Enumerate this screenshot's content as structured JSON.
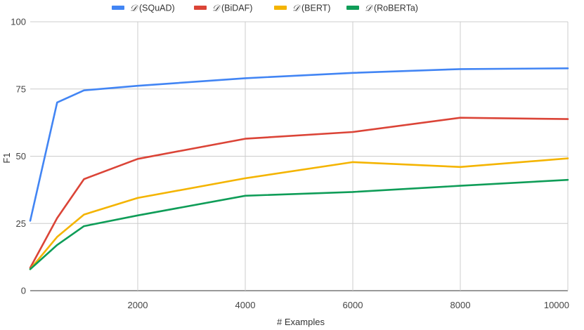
{
  "chart_data": {
    "type": "line",
    "title": "",
    "xlabel": "# Examples",
    "ylabel": "F1",
    "xlim": [
      0,
      10000
    ],
    "ylim": [
      0,
      100
    ],
    "x_ticks": [
      "2000",
      "4000",
      "6000",
      "8000",
      "10000"
    ],
    "x_tick_values": [
      2000,
      4000,
      6000,
      8000,
      10000
    ],
    "y_ticks": [
      "0",
      "25",
      "50",
      "75",
      "100"
    ],
    "y_tick_values": [
      0,
      25,
      50,
      75,
      100
    ],
    "grid": true,
    "legend_position": "top",
    "x": [
      0,
      500,
      1000,
      2000,
      4000,
      6000,
      8000,
      10000
    ],
    "series": [
      {
        "name": "𝒟 (SQuAD)",
        "symbol": "𝒟",
        "label": "(SQuAD)",
        "color": "#4285f4",
        "values": [
          26,
          70,
          74.5,
          76.2,
          79,
          81,
          82.4,
          82.7
        ]
      },
      {
        "name": "𝒟 (BiDAF)",
        "symbol": "𝒟",
        "label": "(BiDAF)",
        "color": "#db4437",
        "values": [
          8.5,
          27,
          41.5,
          49,
          56.5,
          59,
          64.3,
          63.8
        ]
      },
      {
        "name": "𝒟 (BERT)",
        "symbol": "𝒟",
        "label": "(BERT)",
        "color": "#f4b400",
        "values": [
          8,
          20,
          28.3,
          34.5,
          41.8,
          47.8,
          46,
          49.2
        ]
      },
      {
        "name": "𝒟 (RoBERTa)",
        "symbol": "𝒟",
        "label": "(RoBERTa)",
        "color": "#0f9d58",
        "values": [
          8,
          17,
          24,
          28,
          35.3,
          36.7,
          39,
          41.2
        ]
      }
    ]
  }
}
